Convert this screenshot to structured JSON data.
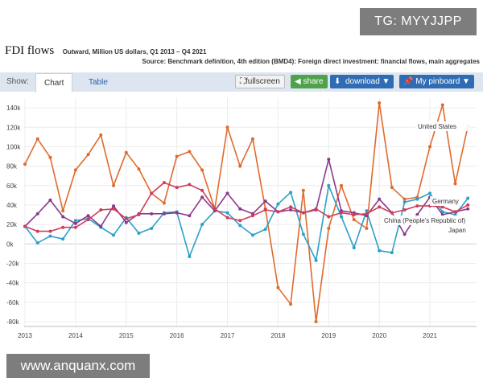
{
  "watermarks": {
    "top": "TG: MYYJJPP",
    "bottom": "www.anquanx.com"
  },
  "header": {
    "title": "FDI flows",
    "subtitle": "Outward, Million US dollars, Q1 2013 – Q4 2021",
    "source": "Source: Benchmark definition, 4th edition (BMD4): Foreign direct investment: financial flows, main aggregates"
  },
  "toolbar": {
    "show_label": "Show:",
    "tab_chart": "Chart",
    "tab_table": "Table",
    "fullscreen_label": "fullscreen",
    "share_label": "share",
    "download_label": "download",
    "pinboard_label": "My pinboard",
    "fullscreen_icon": "⛶",
    "share_icon": "◀",
    "download_icon": "⬇",
    "pinboard_icon": "📌",
    "caret_icon": "▼"
  },
  "chart_data": {
    "type": "line",
    "title": "FDI flows",
    "xlabel": "",
    "ylabel": "",
    "ylim": [
      -85000,
      150000
    ],
    "yticks": [
      -80000,
      -60000,
      -40000,
      -20000,
      0,
      20000,
      40000,
      60000,
      80000,
      100000,
      120000,
      140000
    ],
    "ytick_labels": [
      "-80k",
      "-60k",
      "-40k",
      "-20k",
      "0k",
      "20k",
      "40k",
      "60k",
      "80k",
      "100k",
      "120k",
      "140k"
    ],
    "xticks": [
      "2013",
      "2014",
      "2015",
      "2016",
      "2017",
      "2018",
      "2019",
      "2020",
      "2021"
    ],
    "grid": true,
    "series": [
      {
        "name": "United States",
        "color": "#e06a2e",
        "values": [
          82000,
          108000,
          89000,
          34000,
          76000,
          92000,
          112000,
          60000,
          94000,
          77000,
          52000,
          42000,
          90000,
          95000,
          76000,
          36000,
          120000,
          80000,
          108000,
          36000,
          -45000,
          -62000,
          55000,
          -80000,
          16000,
          60000,
          25000,
          16000,
          145000,
          58000,
          46000,
          48000,
          100000,
          143000,
          62000,
          121000
        ]
      },
      {
        "name": "Germany",
        "color": "#2aa0c8",
        "values": [
          18000,
          1000,
          8000,
          5000,
          24000,
          26000,
          17000,
          9000,
          27000,
          11000,
          16000,
          32000,
          33000,
          -13000,
          20000,
          34000,
          32000,
          19000,
          9000,
          15000,
          41000,
          53000,
          10000,
          -17000,
          60000,
          28000,
          -4000,
          34000,
          -7000,
          -9000,
          43000,
          46000,
          52000,
          33000,
          30000,
          47000
        ]
      },
      {
        "name": "Japan",
        "color": "#8b3a8a",
        "values": [
          18000,
          31000,
          45000,
          28000,
          21000,
          29000,
          18000,
          39000,
          22000,
          31000,
          31000,
          31000,
          32000,
          29000,
          48000,
          34000,
          52000,
          36000,
          31000,
          44000,
          33000,
          35000,
          32000,
          35000,
          87000,
          34000,
          32000,
          29000,
          46000,
          32000,
          10000,
          30000,
          48000,
          30000,
          33000,
          36000
        ]
      },
      {
        "name": "China (People's Republic of)",
        "color": "#cf3d5a",
        "values": [
          18000,
          13000,
          13000,
          17000,
          17000,
          25000,
          35000,
          36000,
          26000,
          30000,
          52000,
          63000,
          58000,
          61000,
          55000,
          36000,
          27000,
          24000,
          29000,
          35000,
          33000,
          38000,
          32000,
          36000,
          28000,
          32000,
          30000,
          31000,
          38000,
          32000,
          35000,
          39000,
          39000,
          38000,
          33000,
          40000
        ]
      }
    ],
    "labels": {
      "us": "United States",
      "germany": "Germany",
      "china": "China (People's Republic of)",
      "japan": "Japan"
    }
  }
}
